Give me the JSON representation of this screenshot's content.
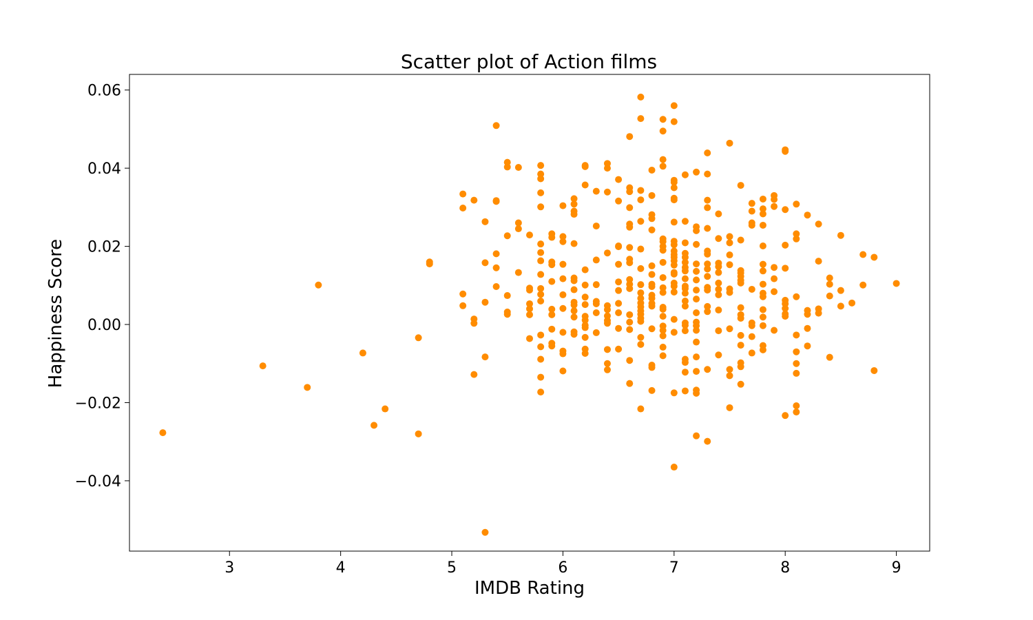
{
  "colors": {
    "marker": "#ff8c00",
    "axis": "#000000",
    "background": "#ffffff"
  },
  "chart_data": {
    "type": "scatter",
    "title": "Scatter plot of Action films",
    "xlabel": "IMDB Rating",
    "ylabel": "Happiness Score",
    "xlim": [
      2.1,
      9.3
    ],
    "ylim": [
      -0.058,
      0.064
    ],
    "x_ticks": [
      3,
      4,
      5,
      6,
      7,
      8,
      9
    ],
    "x_tick_labels": [
      "3",
      "4",
      "5",
      "6",
      "7",
      "8",
      "9"
    ],
    "y_ticks": [
      -0.04,
      -0.02,
      0.0,
      0.02,
      0.04,
      0.06
    ],
    "y_tick_labels": [
      "−0.04",
      "−0.02",
      "0.00",
      "0.02",
      "0.04",
      "0.06"
    ],
    "grid": false,
    "legend": "none",
    "points": [
      [
        2.4,
        -0.0277
      ],
      [
        3.3,
        -0.0106
      ],
      [
        3.7,
        -0.0161
      ],
      [
        3.8,
        0.0101
      ],
      [
        4.2,
        -0.0073
      ],
      [
        4.3,
        -0.0258
      ],
      [
        4.4,
        -0.0216
      ],
      [
        4.7,
        -0.0034
      ],
      [
        4.7,
        -0.028
      ],
      [
        4.8,
        0.0155
      ],
      [
        4.8,
        0.016
      ],
      [
        5.1,
        0.0334
      ],
      [
        5.1,
        0.0298
      ],
      [
        5.1,
        0.0078
      ],
      [
        5.1,
        0.0048
      ],
      [
        5.2,
        0.0318
      ],
      [
        5.2,
        0.0014
      ],
      [
        5.2,
        0.0003
      ],
      [
        5.2,
        -0.0128
      ],
      [
        5.3,
        0.0263
      ],
      [
        5.3,
        0.0158
      ],
      [
        5.3,
        0.0057
      ],
      [
        5.3,
        -0.0083
      ],
      [
        5.3,
        -0.0532
      ],
      [
        5.4,
        0.0509
      ],
      [
        5.4,
        0.0317
      ],
      [
        5.4,
        0.0315
      ],
      [
        5.4,
        0.0181
      ],
      [
        5.4,
        0.0145
      ],
      [
        5.4,
        0.0097
      ],
      [
        5.5,
        0.0415
      ],
      [
        5.5,
        0.0403
      ],
      [
        5.5,
        0.0227
      ],
      [
        5.5,
        0.0074
      ],
      [
        5.5,
        0.0032
      ],
      [
        5.5,
        0.0026
      ],
      [
        5.6,
        0.0402
      ],
      [
        5.6,
        0.026
      ],
      [
        5.6,
        0.0245
      ],
      [
        5.6,
        0.0133
      ],
      [
        5.7,
        0.0229
      ],
      [
        5.7,
        0.0093
      ],
      [
        5.7,
        0.0088
      ],
      [
        5.7,
        0.0053
      ],
      [
        5.7,
        0.004
      ],
      [
        5.7,
        0.0025
      ],
      [
        5.7,
        -0.0036
      ],
      [
        5.8,
        0.0407
      ],
      [
        5.8,
        0.0385
      ],
      [
        5.8,
        0.0373
      ],
      [
        5.8,
        0.0337
      ],
      [
        5.8,
        0.0301
      ],
      [
        5.8,
        0.0206
      ],
      [
        5.8,
        0.0184
      ],
      [
        5.8,
        0.0163
      ],
      [
        5.8,
        0.0128
      ],
      [
        5.8,
        0.0092
      ],
      [
        5.8,
        0.0077
      ],
      [
        5.8,
        0.006
      ],
      [
        5.8,
        -0.0027
      ],
      [
        5.8,
        -0.0057
      ],
      [
        5.8,
        -0.0089
      ],
      [
        5.8,
        -0.0135
      ],
      [
        5.8,
        -0.0173
      ],
      [
        5.9,
        0.0232
      ],
      [
        5.9,
        0.0223
      ],
      [
        5.9,
        0.016
      ],
      [
        5.9,
        0.0153
      ],
      [
        5.9,
        0.011
      ],
      [
        5.9,
        0.0039
      ],
      [
        5.9,
        0.0025
      ],
      [
        5.9,
        -0.0012
      ],
      [
        5.9,
        -0.0048
      ],
      [
        5.9,
        -0.0055
      ],
      [
        6.0,
        0.0304
      ],
      [
        6.0,
        0.0225
      ],
      [
        6.0,
        0.0212
      ],
      [
        6.0,
        0.0154
      ],
      [
        6.0,
        0.0117
      ],
      [
        6.0,
        0.0076
      ],
      [
        6.0,
        0.0041
      ],
      [
        6.0,
        -0.002
      ],
      [
        6.0,
        -0.0068
      ],
      [
        6.0,
        -0.0075
      ],
      [
        6.0,
        -0.0119
      ],
      [
        6.1,
        0.0322
      ],
      [
        6.1,
        0.0308
      ],
      [
        6.1,
        0.029
      ],
      [
        6.1,
        0.0282
      ],
      [
        6.1,
        0.0207
      ],
      [
        6.1,
        0.0119
      ],
      [
        6.1,
        0.0112
      ],
      [
        6.1,
        0.0089
      ],
      [
        6.1,
        0.0057
      ],
      [
        6.1,
        0.005
      ],
      [
        6.1,
        0.0035
      ],
      [
        6.1,
        0.0019
      ],
      [
        6.1,
        -0.0019
      ],
      [
        6.1,
        -0.0025
      ],
      [
        6.2,
        0.0407
      ],
      [
        6.2,
        0.0404
      ],
      [
        6.2,
        0.0357
      ],
      [
        6.2,
        0.014
      ],
      [
        6.2,
        0.0101
      ],
      [
        6.2,
        0.007
      ],
      [
        6.2,
        0.0051
      ],
      [
        6.2,
        0.0021
      ],
      [
        6.2,
        0.0011
      ],
      [
        6.2,
        -0.0002
      ],
      [
        6.2,
        -0.0008
      ],
      [
        6.2,
        -0.0033
      ],
      [
        6.2,
        -0.0063
      ],
      [
        6.2,
        -0.0074
      ],
      [
        6.3,
        0.0341
      ],
      [
        6.3,
        0.0252
      ],
      [
        6.3,
        0.0165
      ],
      [
        6.3,
        0.0102
      ],
      [
        6.3,
        0.0059
      ],
      [
        6.3,
        0.0053
      ],
      [
        6.3,
        0.003
      ],
      [
        6.3,
        -0.0021
      ],
      [
        6.4,
        0.0412
      ],
      [
        6.4,
        0.04
      ],
      [
        6.4,
        0.0339
      ],
      [
        6.4,
        0.0183
      ],
      [
        6.4,
        0.0048
      ],
      [
        6.4,
        0.0038
      ],
      [
        6.4,
        0.0022
      ],
      [
        6.4,
        0.001
      ],
      [
        6.4,
        0.0003
      ],
      [
        6.4,
        -0.0064
      ],
      [
        6.4,
        -0.01
      ],
      [
        6.4,
        -0.0116
      ],
      [
        6.5,
        0.0371
      ],
      [
        6.5,
        0.0316
      ],
      [
        6.5,
        0.0201
      ],
      [
        6.5,
        0.0199
      ],
      [
        6.5,
        0.0154
      ],
      [
        6.5,
        0.0109
      ],
      [
        6.5,
        0.0087
      ],
      [
        6.5,
        0.0054
      ],
      [
        6.5,
        0.003
      ],
      [
        6.5,
        -0.001
      ],
      [
        6.5,
        -0.0063
      ],
      [
        6.6,
        0.0481
      ],
      [
        6.6,
        0.035
      ],
      [
        6.6,
        0.034
      ],
      [
        6.6,
        0.0299
      ],
      [
        6.6,
        0.0257
      ],
      [
        6.6,
        0.0249
      ],
      [
        6.6,
        0.0197
      ],
      [
        6.6,
        0.0167
      ],
      [
        6.6,
        0.0158
      ],
      [
        6.6,
        0.0115
      ],
      [
        6.6,
        0.0103
      ],
      [
        6.6,
        0.0092
      ],
      [
        6.6,
        0.0025
      ],
      [
        6.6,
        0.0006
      ],
      [
        6.6,
        -0.0013
      ],
      [
        6.6,
        -0.0092
      ],
      [
        6.6,
        -0.0151
      ],
      [
        6.7,
        0.0582
      ],
      [
        6.7,
        0.0527
      ],
      [
        6.7,
        0.0343
      ],
      [
        6.7,
        0.0319
      ],
      [
        6.7,
        0.0264
      ],
      [
        6.7,
        0.0193
      ],
      [
        6.7,
        0.0143
      ],
      [
        6.7,
        0.0102
      ],
      [
        6.7,
        0.0081
      ],
      [
        6.7,
        0.0067
      ],
      [
        6.7,
        0.0055
      ],
      [
        6.7,
        0.0045
      ],
      [
        6.7,
        0.0035
      ],
      [
        6.7,
        0.0026
      ],
      [
        6.7,
        0.0016
      ],
      [
        6.7,
        0.0008
      ],
      [
        6.7,
        -0.0033
      ],
      [
        6.7,
        -0.0051
      ],
      [
        6.7,
        -0.0216
      ],
      [
        6.8,
        0.0395
      ],
      [
        6.8,
        0.033
      ],
      [
        6.8,
        0.0281
      ],
      [
        6.8,
        0.0271
      ],
      [
        6.8,
        0.0242
      ],
      [
        6.8,
        0.015
      ],
      [
        6.8,
        0.0128
      ],
      [
        6.8,
        0.0103
      ],
      [
        6.8,
        0.0097
      ],
      [
        6.8,
        0.0075
      ],
      [
        6.8,
        0.0067
      ],
      [
        6.8,
        0.0054
      ],
      [
        6.8,
        0.0047
      ],
      [
        6.8,
        -0.0011
      ],
      [
        6.8,
        -0.0104
      ],
      [
        6.8,
        -0.011
      ],
      [
        6.8,
        -0.0169
      ],
      [
        6.9,
        0.0525
      ],
      [
        6.9,
        0.0495
      ],
      [
        6.9,
        0.0422
      ],
      [
        6.9,
        0.0405
      ],
      [
        6.9,
        0.0219
      ],
      [
        6.9,
        0.0212
      ],
      [
        6.9,
        0.02
      ],
      [
        6.9,
        0.019
      ],
      [
        6.9,
        0.0159
      ],
      [
        6.9,
        0.012
      ],
      [
        6.9,
        0.0094
      ],
      [
        6.9,
        0.0082
      ],
      [
        6.9,
        0.0044
      ],
      [
        6.9,
        0.0039
      ],
      [
        6.9,
        0.0021
      ],
      [
        6.9,
        -0.0004
      ],
      [
        6.9,
        -0.0015
      ],
      [
        6.9,
        -0.0029
      ],
      [
        6.9,
        -0.0058
      ],
      [
        6.9,
        -0.008
      ],
      [
        7.0,
        0.056
      ],
      [
        7.0,
        0.0519
      ],
      [
        7.0,
        0.0369
      ],
      [
        7.0,
        0.0364
      ],
      [
        7.0,
        0.035
      ],
      [
        7.0,
        0.0323
      ],
      [
        7.0,
        0.0319
      ],
      [
        7.0,
        0.0262
      ],
      [
        7.0,
        0.0213
      ],
      [
        7.0,
        0.0204
      ],
      [
        7.0,
        0.0188
      ],
      [
        7.0,
        0.0179
      ],
      [
        7.0,
        0.0172
      ],
      [
        7.0,
        0.0163
      ],
      [
        7.0,
        0.0152
      ],
      [
        7.0,
        0.0133
      ],
      [
        7.0,
        0.0129
      ],
      [
        7.0,
        0.0106
      ],
      [
        7.0,
        0.0098
      ],
      [
        7.0,
        0.0083
      ],
      [
        7.0,
        0.0013
      ],
      [
        7.0,
        -0.002
      ],
      [
        7.0,
        -0.0175
      ],
      [
        7.0,
        -0.0365
      ],
      [
        7.1,
        0.0383
      ],
      [
        7.1,
        0.0264
      ],
      [
        7.1,
        0.0209
      ],
      [
        7.1,
        0.0182
      ],
      [
        7.1,
        0.0172
      ],
      [
        7.1,
        0.0159
      ],
      [
        7.1,
        0.0146
      ],
      [
        7.1,
        0.0137
      ],
      [
        7.1,
        0.0117
      ],
      [
        7.1,
        0.0098
      ],
      [
        7.1,
        0.0092
      ],
      [
        7.1,
        0.008
      ],
      [
        7.1,
        0.006
      ],
      [
        7.1,
        0.0047
      ],
      [
        7.1,
        0.0004
      ],
      [
        7.1,
        -0.0002
      ],
      [
        7.1,
        -0.0016
      ],
      [
        7.1,
        -0.0089
      ],
      [
        7.1,
        -0.0097
      ],
      [
        7.1,
        -0.0122
      ],
      [
        7.1,
        -0.017
      ],
      [
        7.2,
        0.039
      ],
      [
        7.2,
        0.025
      ],
      [
        7.2,
        0.024
      ],
      [
        7.2,
        0.0205
      ],
      [
        7.2,
        0.0155
      ],
      [
        7.2,
        0.0136
      ],
      [
        7.2,
        0.0114
      ],
      [
        7.2,
        0.0088
      ],
      [
        7.2,
        0.0065
      ],
      [
        7.2,
        0.003
      ],
      [
        7.2,
        0.0006
      ],
      [
        7.2,
        -0.0003
      ],
      [
        7.2,
        -0.0015
      ],
      [
        7.2,
        -0.0045
      ],
      [
        7.2,
        -0.0083
      ],
      [
        7.2,
        -0.012
      ],
      [
        7.2,
        -0.0168
      ],
      [
        7.2,
        -0.0176
      ],
      [
        7.2,
        -0.0285
      ],
      [
        7.3,
        0.0439
      ],
      [
        7.3,
        0.0385
      ],
      [
        7.3,
        0.0318
      ],
      [
        7.3,
        0.0299
      ],
      [
        7.3,
        0.0246
      ],
      [
        7.3,
        0.0188
      ],
      [
        7.3,
        0.018
      ],
      [
        7.3,
        0.0155
      ],
      [
        7.3,
        0.0142
      ],
      [
        7.3,
        0.0123
      ],
      [
        7.3,
        0.0095
      ],
      [
        7.3,
        0.0088
      ],
      [
        7.3,
        0.0046
      ],
      [
        7.3,
        0.0033
      ],
      [
        7.3,
        -0.0115
      ],
      [
        7.3,
        -0.0299
      ],
      [
        7.4,
        0.0283
      ],
      [
        7.4,
        0.022
      ],
      [
        7.4,
        0.0157
      ],
      [
        7.4,
        0.0148
      ],
      [
        7.4,
        0.0133
      ],
      [
        7.4,
        0.0106
      ],
      [
        7.4,
        0.009
      ],
      [
        7.4,
        0.0076
      ],
      [
        7.4,
        0.0037
      ],
      [
        7.4,
        -0.0016
      ],
      [
        7.4,
        -0.0078
      ],
      [
        7.5,
        0.0464
      ],
      [
        7.5,
        0.0225
      ],
      [
        7.5,
        0.0209
      ],
      [
        7.5,
        0.0178
      ],
      [
        7.5,
        0.0153
      ],
      [
        7.5,
        0.0091
      ],
      [
        7.5,
        0.0082
      ],
      [
        7.5,
        -0.0011
      ],
      [
        7.5,
        -0.0115
      ],
      [
        7.5,
        -0.0131
      ],
      [
        7.5,
        -0.0213
      ],
      [
        7.6,
        0.0356
      ],
      [
        7.6,
        0.0216
      ],
      [
        7.6,
        0.0138
      ],
      [
        7.6,
        0.0132
      ],
      [
        7.6,
        0.0123
      ],
      [
        7.6,
        0.0113
      ],
      [
        7.6,
        0.0106
      ],
      [
        7.6,
        0.0043
      ],
      [
        7.6,
        0.0025
      ],
      [
        7.6,
        0.0016
      ],
      [
        7.6,
        -0.0028
      ],
      [
        7.6,
        -0.0053
      ],
      [
        7.6,
        -0.0098
      ],
      [
        7.6,
        -0.0108
      ],
      [
        7.6,
        -0.0153
      ],
      [
        7.7,
        0.031
      ],
      [
        7.7,
        0.029
      ],
      [
        7.7,
        0.026
      ],
      [
        7.7,
        0.0254
      ],
      [
        7.7,
        0.009
      ],
      [
        7.7,
        0.0004
      ],
      [
        7.7,
        -0.0003
      ],
      [
        7.7,
        -0.0031
      ],
      [
        7.7,
        -0.0073
      ],
      [
        7.8,
        0.0321
      ],
      [
        7.8,
        0.0296
      ],
      [
        7.8,
        0.0283
      ],
      [
        7.8,
        0.0254
      ],
      [
        7.8,
        0.0201
      ],
      [
        7.8,
        0.0154
      ],
      [
        7.8,
        0.0137
      ],
      [
        7.8,
        0.0103
      ],
      [
        7.8,
        0.008
      ],
      [
        7.8,
        0.0071
      ],
      [
        7.8,
        0.0038
      ],
      [
        7.8,
        0.0019
      ],
      [
        7.8,
        -0.0003
      ],
      [
        7.8,
        -0.0054
      ],
      [
        7.8,
        -0.0065
      ],
      [
        7.9,
        0.033
      ],
      [
        7.9,
        0.032
      ],
      [
        7.9,
        0.0302
      ],
      [
        7.9,
        0.0146
      ],
      [
        7.9,
        0.0117
      ],
      [
        7.9,
        0.0084
      ],
      [
        7.9,
        -0.0015
      ],
      [
        8.0,
        0.0447
      ],
      [
        8.0,
        0.0443
      ],
      [
        8.0,
        0.0294
      ],
      [
        8.0,
        0.0203
      ],
      [
        8.0,
        0.0144
      ],
      [
        8.0,
        0.0062
      ],
      [
        8.0,
        0.0053
      ],
      [
        8.0,
        0.0041
      ],
      [
        8.0,
        0.0027
      ],
      [
        8.0,
        0.0021
      ],
      [
        8.0,
        -0.0233
      ],
      [
        8.1,
        0.0308
      ],
      [
        8.1,
        0.0232
      ],
      [
        8.1,
        0.0219
      ],
      [
        8.1,
        0.0071
      ],
      [
        8.1,
        -0.0027
      ],
      [
        8.1,
        -0.007
      ],
      [
        8.1,
        -0.01
      ],
      [
        8.1,
        -0.0125
      ],
      [
        8.1,
        -0.0208
      ],
      [
        8.1,
        -0.0224
      ],
      [
        8.2,
        0.028
      ],
      [
        8.2,
        0.0036
      ],
      [
        8.2,
        0.0026
      ],
      [
        8.2,
        -0.001
      ],
      [
        8.2,
        -0.0055
      ],
      [
        8.3,
        0.0257
      ],
      [
        8.3,
        0.0162
      ],
      [
        8.3,
        0.004
      ],
      [
        8.3,
        0.0029
      ],
      [
        8.4,
        0.0119
      ],
      [
        8.4,
        0.0103
      ],
      [
        8.4,
        0.0073
      ],
      [
        8.4,
        -0.0084
      ],
      [
        8.5,
        0.0228
      ],
      [
        8.5,
        0.0087
      ],
      [
        8.5,
        0.0047
      ],
      [
        8.6,
        0.0055
      ],
      [
        8.7,
        0.0179
      ],
      [
        8.7,
        0.0101
      ],
      [
        8.8,
        0.0172
      ],
      [
        8.8,
        -0.0118
      ],
      [
        9.0,
        0.0105
      ]
    ]
  }
}
